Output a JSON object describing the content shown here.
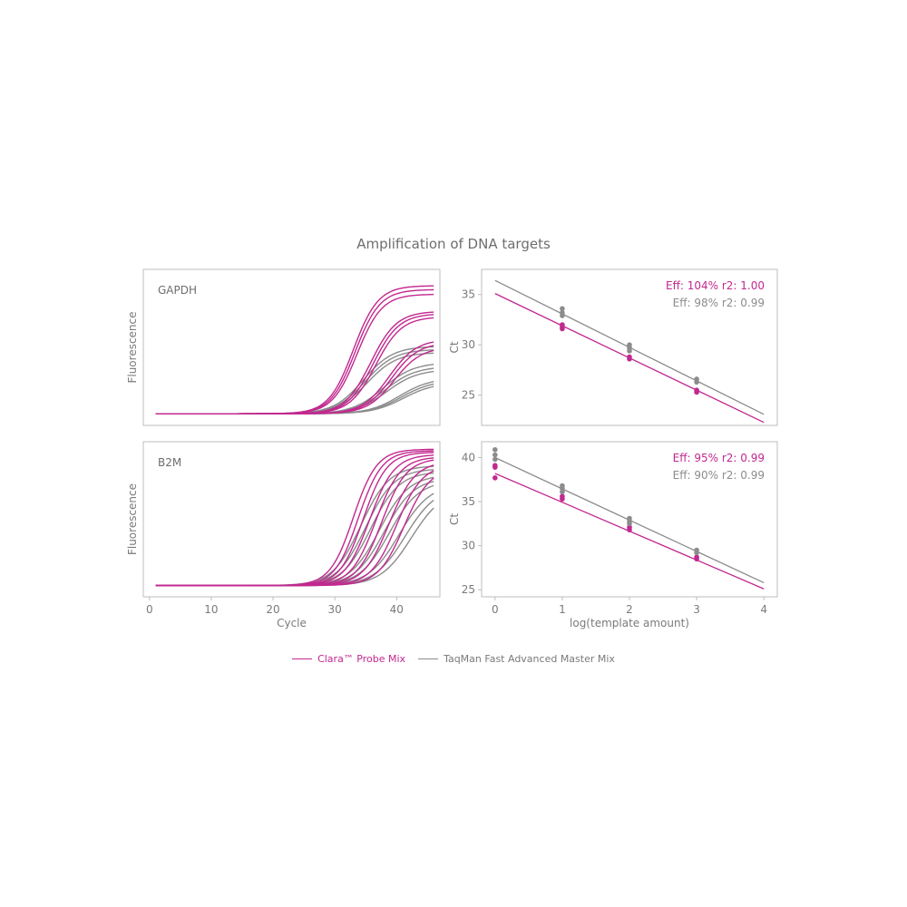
{
  "title": "Amplification of DNA targets",
  "colors": {
    "clara": "#c2288f",
    "taqman": "#8c8c8c",
    "frame": "#bdbdbd",
    "axis_text": "#7a7a7a"
  },
  "legend": [
    {
      "label": "Clara™ Probe Mix",
      "color": "#c2288f"
    },
    {
      "label": "TaqMan Fast Advanced Master Mix",
      "color": "#8c8c8c"
    }
  ],
  "chart_data": [
    {
      "type": "line",
      "target": "GAPDH",
      "panel_label": "GAPDH",
      "xlabel": "",
      "ylabel": "Fluorescence",
      "xlim": [
        -1,
        47
      ],
      "x_ticks": [],
      "y_ticks": [],
      "curves": {
        "clara": [
          {
            "plateau": 36.5,
            "mid": 33.0,
            "slope": 2.0
          },
          {
            "plateau": 36.0,
            "mid": 33.3,
            "slope": 2.0
          },
          {
            "plateau": 35.4,
            "mid": 33.6,
            "slope": 2.0
          },
          {
            "plateau": 33.2,
            "mid": 35.8,
            "slope": 2.1
          },
          {
            "plateau": 32.9,
            "mid": 36.2,
            "slope": 2.1
          },
          {
            "plateau": 32.5,
            "mid": 36.6,
            "slope": 2.1
          },
          {
            "plateau": 29.6,
            "mid": 38.8,
            "slope": 2.2
          },
          {
            "plateau": 29.2,
            "mid": 39.2,
            "slope": 2.2
          },
          {
            "plateau": 28.6,
            "mid": 39.6,
            "slope": 2.2
          }
        ],
        "taqman": [
          {
            "plateau": 28.7,
            "mid": 34.6,
            "slope": 2.4
          },
          {
            "plateau": 28.3,
            "mid": 34.9,
            "slope": 2.4
          },
          {
            "plateau": 27.9,
            "mid": 35.2,
            "slope": 2.4
          },
          {
            "plateau": 26.6,
            "mid": 37.8,
            "slope": 2.5
          },
          {
            "plateau": 26.1,
            "mid": 38.1,
            "slope": 2.5
          },
          {
            "plateau": 25.7,
            "mid": 38.4,
            "slope": 2.5
          },
          {
            "plateau": 24.6,
            "mid": 40.5,
            "slope": 2.5
          },
          {
            "plateau": 24.3,
            "mid": 40.8,
            "slope": 2.5
          },
          {
            "plateau": 24.0,
            "mid": 41.1,
            "slope": 2.5
          }
        ]
      },
      "y_baseline": 20.0,
      "y_max": 38.0
    },
    {
      "type": "scatter",
      "target": "GAPDH",
      "xlabel": "",
      "ylabel": "Ct",
      "xlim": [
        -0.2,
        4.2
      ],
      "ylim": [
        22,
        37.5
      ],
      "x_ticks": [],
      "y_ticks": [
        25,
        30,
        35
      ],
      "annotations": [
        {
          "text": "Eff: 104% r2: 1.00",
          "color": "#c2288f"
        },
        {
          "text": "Eff: 98% r2: 0.99",
          "color": "#8c8c8c"
        }
      ],
      "series": [
        {
          "key": "clara",
          "points": [
            [
              1,
              32.0
            ],
            [
              1,
              31.8
            ],
            [
              1,
              31.6
            ],
            [
              2,
              28.8
            ],
            [
              2,
              28.6
            ],
            [
              3,
              25.5
            ],
            [
              3,
              25.3
            ]
          ],
          "fit": [
            [
              0,
              35.1
            ],
            [
              4,
              22.3
            ]
          ]
        },
        {
          "key": "taqman",
          "points": [
            [
              1,
              33.6
            ],
            [
              1,
              33.2
            ],
            [
              1,
              32.9
            ],
            [
              2,
              30.0
            ],
            [
              2,
              29.7
            ],
            [
              2,
              29.4
            ],
            [
              3,
              26.6
            ],
            [
              3,
              26.3
            ]
          ],
          "fit": [
            [
              0,
              36.4
            ],
            [
              4,
              23.1
            ]
          ]
        }
      ]
    },
    {
      "type": "line",
      "target": "B2M",
      "panel_label": "B2M",
      "xlabel": "Cycle",
      "ylabel": "Fluorescence",
      "xlim": [
        -1,
        47
      ],
      "x_ticks": [
        0,
        10,
        20,
        30,
        40
      ],
      "y_ticks": [],
      "curves": {
        "clara": [
          {
            "plateau": 38.2,
            "mid": 33.0,
            "slope": 1.9
          },
          {
            "plateau": 38.0,
            "mid": 33.8,
            "slope": 1.9
          },
          {
            "plateau": 37.8,
            "mid": 34.6,
            "slope": 1.9
          },
          {
            "plateau": 37.5,
            "mid": 35.6,
            "slope": 2.0
          },
          {
            "plateau": 37.2,
            "mid": 36.6,
            "slope": 2.0
          },
          {
            "plateau": 37.0,
            "mid": 37.6,
            "slope": 2.0
          },
          {
            "plateau": 36.6,
            "mid": 38.8,
            "slope": 2.1
          },
          {
            "plateau": 36.2,
            "mid": 40.0,
            "slope": 2.1
          },
          {
            "plateau": 35.8,
            "mid": 41.2,
            "slope": 2.1
          }
        ],
        "taqman": [
          {
            "plateau": 36.0,
            "mid": 34.2,
            "slope": 2.3
          },
          {
            "plateau": 35.6,
            "mid": 35.0,
            "slope": 2.3
          },
          {
            "plateau": 35.2,
            "mid": 35.8,
            "slope": 2.3
          },
          {
            "plateau": 34.8,
            "mid": 37.2,
            "slope": 2.4
          },
          {
            "plateau": 34.4,
            "mid": 38.0,
            "slope": 2.4
          },
          {
            "plateau": 34.0,
            "mid": 38.8,
            "slope": 2.4
          },
          {
            "plateau": 33.6,
            "mid": 40.4,
            "slope": 2.5
          },
          {
            "plateau": 33.2,
            "mid": 41.4,
            "slope": 2.5
          },
          {
            "plateau": 32.8,
            "mid": 42.4,
            "slope": 2.5
          }
        ]
      },
      "y_baseline": 20.0,
      "y_max": 38.6
    },
    {
      "type": "scatter",
      "target": "B2M",
      "xlabel": "log(template amount)",
      "ylabel": "Ct",
      "xlim": [
        -0.2,
        4.2
      ],
      "ylim": [
        24.2,
        41.8
      ],
      "x_ticks": [
        0,
        1,
        2,
        3,
        4
      ],
      "y_ticks": [
        25,
        30,
        35,
        40
      ],
      "annotations": [
        {
          "text": "Eff: 95% r2: 0.99",
          "color": "#c2288f"
        },
        {
          "text": "Eff: 90% r2: 0.99",
          "color": "#8c8c8c"
        }
      ],
      "series": [
        {
          "key": "clara",
          "points": [
            [
              0,
              39.1
            ],
            [
              0,
              38.9
            ],
            [
              0,
              37.7
            ],
            [
              1,
              35.6
            ],
            [
              1,
              35.3
            ],
            [
              2,
              32.1
            ],
            [
              2,
              31.8
            ],
            [
              3,
              28.7
            ],
            [
              3,
              28.5
            ]
          ],
          "fit": [
            [
              0,
              38.2
            ],
            [
              4,
              25.1
            ]
          ]
        },
        {
          "key": "taqman",
          "points": [
            [
              0,
              40.9
            ],
            [
              0,
              40.3
            ],
            [
              0,
              39.8
            ],
            [
              1,
              36.8
            ],
            [
              1,
              36.5
            ],
            [
              1,
              36.1
            ],
            [
              2,
              33.1
            ],
            [
              2,
              32.8
            ],
            [
              2,
              32.5
            ],
            [
              3,
              29.5
            ],
            [
              3,
              29.2
            ]
          ],
          "fit": [
            [
              0,
              40.0
            ],
            [
              4,
              25.8
            ]
          ]
        }
      ]
    }
  ]
}
